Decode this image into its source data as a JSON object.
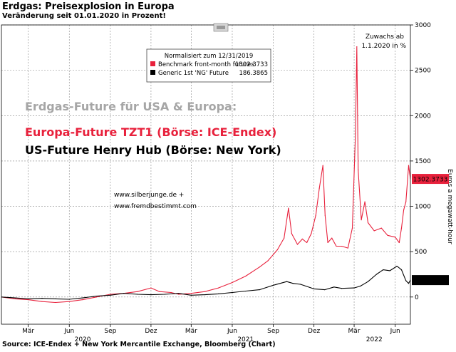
{
  "header": {
    "title": "Erdgas: Preisexplosion in Europa",
    "subtitle": "Veränderung seit 01.01.2020 in Prozent!"
  },
  "footer": {
    "source": "Source: ICE-Endex + New York Mercantile Exchange, Bloomberg (Chart)"
  },
  "chart_data": {
    "type": "line",
    "title": "Erdgas: Preisexplosion in Europa",
    "subtitle": "Veränderung seit 01.01.2020 in Prozent!",
    "ylabel": "Euros a megawatt-hour",
    "ylim": [
      -300,
      3000
    ],
    "yticks": [
      0,
      500,
      1000,
      1500,
      2000,
      2500,
      3000
    ],
    "y_axis_side": "right",
    "grid": true,
    "x_ticks": [
      {
        "label": "Mär",
        "date": "2020-03-01"
      },
      {
        "label": "Jun",
        "date": "2020-06-01"
      },
      {
        "label": "Sep",
        "date": "2020-09-01"
      },
      {
        "label": "Dez",
        "date": "2020-12-01"
      },
      {
        "label": "Mär",
        "date": "2021-03-01"
      },
      {
        "label": "Jun",
        "date": "2021-06-01"
      },
      {
        "label": "Sep",
        "date": "2021-09-01"
      },
      {
        "label": "Dez",
        "date": "2021-12-01"
      },
      {
        "label": "Mär",
        "date": "2022-03-01"
      },
      {
        "label": "Jun",
        "date": "2022-06-01"
      }
    ],
    "year_labels": [
      {
        "label": "2020",
        "date": "2020-07-01"
      },
      {
        "label": "2021",
        "date": "2021-07-01"
      },
      {
        "label": "2022",
        "date": "2022-04-15"
      }
    ],
    "x_range": [
      "2020-01-01",
      "2022-07-05"
    ],
    "legend": {
      "placement": "top-center",
      "header": "Normalisiert zum 12/31/2019",
      "entries": [
        {
          "label": "Benchmark front-month futures",
          "value": "1302.3733",
          "color": "#e8213c"
        },
        {
          "label": "Generic 1st 'NG' Future",
          "value": "186.3865",
          "color": "#000000"
        }
      ]
    },
    "annotation_top_right": [
      "Zuwachs ab",
      "1.1.2020 in %"
    ],
    "overlay_heading": "Erdgas-Future für USA & Europa:",
    "overlay_lines": [
      {
        "text": "Europa-Future TZT1 (Börse: ICE-Endex)",
        "color": "#e8213c"
      },
      {
        "text": "US-Future Henry Hub (Börse: New York)",
        "color": "#000000"
      }
    ],
    "watermark": [
      "www.silberjunge.de +",
      "www.fremdbestimmt.com"
    ],
    "last_value_labels": [
      {
        "text": "1302.3733",
        "value": 1302.3733,
        "color": "#e8213c"
      },
      {
        "text": "186.3865",
        "value": 186.3865,
        "color": "#000000"
      }
    ],
    "series": [
      {
        "name": "Benchmark front-month futures",
        "color": "#e8213c",
        "points": [
          [
            "2020-01-01",
            0
          ],
          [
            "2020-02-01",
            -20
          ],
          [
            "2020-03-01",
            -30
          ],
          [
            "2020-04-01",
            -50
          ],
          [
            "2020-05-01",
            -60
          ],
          [
            "2020-06-01",
            -50
          ],
          [
            "2020-07-01",
            -30
          ],
          [
            "2020-08-01",
            0
          ],
          [
            "2020-09-01",
            30
          ],
          [
            "2020-10-01",
            40
          ],
          [
            "2020-11-01",
            60
          ],
          [
            "2020-12-01",
            100
          ],
          [
            "2020-12-20",
            60
          ],
          [
            "2021-01-15",
            50
          ],
          [
            "2021-02-01",
            30
          ],
          [
            "2021-03-01",
            40
          ],
          [
            "2021-04-01",
            60
          ],
          [
            "2021-05-01",
            100
          ],
          [
            "2021-06-01",
            160
          ],
          [
            "2021-07-01",
            230
          ],
          [
            "2021-08-01",
            330
          ],
          [
            "2021-08-20",
            400
          ],
          [
            "2021-09-10",
            520
          ],
          [
            "2021-09-25",
            650
          ],
          [
            "2021-10-05",
            980
          ],
          [
            "2021-10-12",
            700
          ],
          [
            "2021-10-25",
            580
          ],
          [
            "2021-11-05",
            640
          ],
          [
            "2021-11-15",
            600
          ],
          [
            "2021-11-25",
            700
          ],
          [
            "2021-12-05",
            900
          ],
          [
            "2021-12-13",
            1200
          ],
          [
            "2021-12-21",
            1450
          ],
          [
            "2021-12-26",
            900
          ],
          [
            "2022-01-01",
            600
          ],
          [
            "2022-01-10",
            650
          ],
          [
            "2022-01-20",
            560
          ],
          [
            "2022-02-01",
            560
          ],
          [
            "2022-02-15",
            540
          ],
          [
            "2022-02-25",
            760
          ],
          [
            "2022-03-04",
            1800
          ],
          [
            "2022-03-07",
            2760
          ],
          [
            "2022-03-10",
            1400
          ],
          [
            "2022-03-17",
            850
          ],
          [
            "2022-03-25",
            1050
          ],
          [
            "2022-04-01",
            820
          ],
          [
            "2022-04-15",
            730
          ],
          [
            "2022-05-01",
            760
          ],
          [
            "2022-05-15",
            680
          ],
          [
            "2022-06-01",
            660
          ],
          [
            "2022-06-10",
            600
          ],
          [
            "2022-06-15",
            760
          ],
          [
            "2022-06-20",
            960
          ],
          [
            "2022-06-25",
            1050
          ],
          [
            "2022-07-01",
            1450
          ],
          [
            "2022-07-05",
            1302.3733
          ]
        ]
      },
      {
        "name": "Generic 1st 'NG' Future",
        "color": "#000000",
        "points": [
          [
            "2020-01-01",
            0
          ],
          [
            "2020-02-01",
            -10
          ],
          [
            "2020-03-01",
            -20
          ],
          [
            "2020-04-01",
            -15
          ],
          [
            "2020-05-01",
            -20
          ],
          [
            "2020-06-01",
            -25
          ],
          [
            "2020-07-01",
            -10
          ],
          [
            "2020-08-01",
            10
          ],
          [
            "2020-09-01",
            20
          ],
          [
            "2020-10-01",
            40
          ],
          [
            "2020-11-01",
            30
          ],
          [
            "2020-12-01",
            25
          ],
          [
            "2021-01-01",
            30
          ],
          [
            "2021-02-01",
            40
          ],
          [
            "2021-03-01",
            20
          ],
          [
            "2021-04-01",
            25
          ],
          [
            "2021-05-01",
            35
          ],
          [
            "2021-06-01",
            50
          ],
          [
            "2021-07-01",
            65
          ],
          [
            "2021-08-01",
            80
          ],
          [
            "2021-09-01",
            130
          ],
          [
            "2021-10-01",
            170
          ],
          [
            "2021-10-15",
            150
          ],
          [
            "2021-11-01",
            140
          ],
          [
            "2021-12-01",
            90
          ],
          [
            "2021-12-25",
            80
          ],
          [
            "2022-01-15",
            110
          ],
          [
            "2022-02-01",
            95
          ],
          [
            "2022-03-01",
            100
          ],
          [
            "2022-03-15",
            120
          ],
          [
            "2022-04-01",
            170
          ],
          [
            "2022-04-20",
            250
          ],
          [
            "2022-05-05",
            300
          ],
          [
            "2022-05-20",
            290
          ],
          [
            "2022-06-05",
            340
          ],
          [
            "2022-06-15",
            300
          ],
          [
            "2022-06-25",
            180
          ],
          [
            "2022-07-01",
            150
          ],
          [
            "2022-07-05",
            186.3865
          ]
        ]
      }
    ]
  }
}
